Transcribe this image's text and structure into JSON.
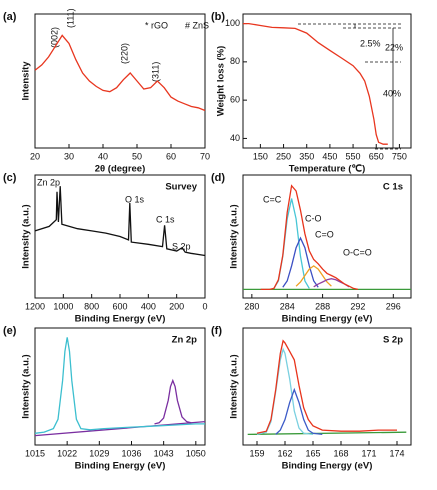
{
  "chart_data": [
    {
      "type": "line",
      "panel": "(a)",
      "x_label": "2θ (degree)",
      "y_label": "Intensity",
      "xlim": [
        20,
        70
      ],
      "xticks": [
        20,
        30,
        40,
        50,
        60,
        70
      ],
      "ylim": [
        0,
        100
      ],
      "annotations": [
        "* rGO",
        "# ZnS",
        "(002)",
        "(111)",
        "(220)",
        "(311)"
      ],
      "series": [
        {
          "color": "#e8361f",
          "x": [
            20,
            22,
            24,
            26,
            28,
            30,
            32,
            34,
            36,
            38,
            40,
            42,
            44,
            46,
            48,
            50,
            52,
            54,
            56,
            58,
            60,
            62,
            64,
            66,
            68,
            70
          ],
          "values": [
            58,
            62,
            68,
            76,
            84,
            78,
            66,
            56,
            50,
            46,
            43,
            42,
            45,
            51,
            56,
            50,
            44,
            45,
            50,
            45,
            38,
            35,
            33,
            31,
            30,
            28
          ]
        }
      ]
    },
    {
      "type": "line",
      "panel": "(b)",
      "x_label": "Temperature (℃)",
      "y_label": "Weight loss (%)",
      "xlim": [
        75,
        800
      ],
      "xticks": [
        150,
        250,
        350,
        450,
        550,
        650,
        750
      ],
      "ylim": [
        35,
        105
      ],
      "yticks": [
        40,
        60,
        80,
        100
      ],
      "annotations": [
        "2.5%",
        "22%",
        "40%"
      ],
      "series": [
        {
          "color": "#e8361f",
          "x": [
            75,
            100,
            150,
            200,
            250,
            300,
            350,
            400,
            450,
            500,
            550,
            580,
            600,
            620,
            640,
            650,
            660,
            680,
            700
          ],
          "values": [
            100,
            100,
            99,
            98,
            97.8,
            97.5,
            95,
            90,
            86,
            82,
            78,
            74,
            70,
            62,
            50,
            42,
            38,
            37,
            37
          ]
        }
      ]
    },
    {
      "type": "line",
      "panel": "(c)",
      "x_label": "Binding Energy (eV)",
      "y_label": "Intensity (a.u.)",
      "label": "Survey",
      "xlim": [
        1200,
        0
      ],
      "xticks": [
        1200,
        1000,
        800,
        600,
        400,
        200,
        0
      ],
      "ylim": [
        0,
        110
      ],
      "annotations": [
        "Zn 2p",
        "O 1s",
        "C 1s",
        "S 2p"
      ],
      "series": [
        {
          "color": "#111111",
          "x": [
            1200,
            1100,
            1050,
            1045,
            1035,
            1022,
            1010,
            900,
            800,
            700,
            600,
            540,
            531,
            520,
            400,
            300,
            285,
            270,
            200,
            162,
            140,
            100,
            0
          ],
          "values": [
            60,
            64,
            70,
            95,
            68,
            100,
            66,
            62,
            60,
            58,
            55,
            52,
            85,
            50,
            48,
            46,
            65,
            44,
            42,
            45,
            41,
            40,
            38
          ]
        }
      ]
    },
    {
      "type": "line",
      "panel": "(d)",
      "x_label": "Binding Energy (eV)",
      "y_label": "Intensity (a.u.)",
      "label": "C 1s",
      "xlim": [
        279,
        298
      ],
      "xticks": [
        280,
        284,
        288,
        292,
        296
      ],
      "ylim": [
        0,
        115
      ],
      "series": [
        {
          "color": "#3a9a3a",
          "x": [
            279,
            298
          ],
          "values": [
            8,
            8
          ]
        },
        {
          "name": "C=C",
          "color": "#48c6d6",
          "x": [
            282.5,
            283,
            283.5,
            284,
            284.5,
            285,
            285.5,
            286,
            286.5
          ],
          "values": [
            9,
            16,
            39,
            74,
            93,
            74,
            39,
            16,
            9
          ]
        },
        {
          "name": "C-O",
          "color": "#3b4fc4",
          "x": [
            283.5,
            284,
            284.5,
            285,
            285.5,
            286,
            286.5,
            287,
            287.5
          ],
          "values": [
            10,
            16,
            30,
            47,
            56,
            47,
            30,
            16,
            10
          ]
        },
        {
          "name": "C=O",
          "color": "#f0a020",
          "x": [
            285,
            285.5,
            286,
            286.5,
            287,
            287.5,
            288,
            288.5,
            289
          ],
          "values": [
            11,
            15,
            21,
            27,
            30,
            27,
            21,
            15,
            11
          ]
        },
        {
          "name": "O-C=O",
          "color": "#9040a0",
          "x": [
            287,
            287.5,
            288,
            288.5,
            289,
            289.5,
            290,
            290.5,
            291
          ],
          "values": [
            10.5,
            13,
            15,
            17,
            18,
            17,
            15,
            13,
            10.5
          ]
        },
        {
          "color": "#e8341c",
          "x": [
            281,
            281.5,
            282,
            282.5,
            283,
            283.5,
            284,
            284.5,
            285,
            285.5,
            286,
            286.5,
            287,
            287.5,
            288,
            288.5,
            289,
            289.5,
            290,
            290.5,
            291,
            291.5,
            292
          ],
          "values": [
            8,
            8,
            8,
            9,
            17,
            40,
            80,
            105,
            100,
            82,
            60,
            44,
            36,
            32,
            27,
            23,
            21,
            19,
            16,
            13,
            11,
            9,
            8
          ]
        }
      ]
    },
    {
      "type": "line",
      "panel": "(e)",
      "x_label": "Binding Energy (eV)",
      "y_label": "Intensity (a.u.)",
      "label": "Zn 2p",
      "xlim": [
        1015,
        1052
      ],
      "xticks": [
        1015,
        1022,
        1029,
        1036,
        1043,
        1050
      ],
      "ylim": [
        0,
        100
      ],
      "series": [
        {
          "color": "#7a2ea0",
          "x": [
            1015,
            1052
          ],
          "values": [
            8,
            20
          ]
        },
        {
          "color": "#3cbfcf",
          "x": [
            1015,
            1017,
            1019,
            1020,
            1021,
            1021.5,
            1022,
            1022.5,
            1023,
            1024,
            1025,
            1027,
            1030,
            1035,
            1040,
            1045,
            1050,
            1052
          ],
          "values": [
            10,
            11,
            14,
            22,
            55,
            80,
            92,
            80,
            55,
            22,
            14,
            13,
            14,
            15,
            16,
            17,
            18,
            18
          ]
        },
        {
          "color": "#7a2ea0",
          "x": [
            1041,
            1042,
            1043,
            1044,
            1044.5,
            1045,
            1045.5,
            1046,
            1047,
            1048,
            1049
          ],
          "values": [
            18,
            19,
            23,
            38,
            50,
            55,
            50,
            38,
            24,
            20,
            19
          ]
        }
      ]
    },
    {
      "type": "line",
      "panel": "(f)",
      "x_label": "Binding Energy (eV)",
      "y_label": "Intensity (a.u.)",
      "label": "S 2p",
      "xlim": [
        157.5,
        175.5
      ],
      "xticks": [
        159,
        162,
        165,
        168,
        171,
        174
      ],
      "ylim": [
        0,
        110
      ],
      "series": [
        {
          "color": "#3a9a3a",
          "x": [
            158,
            175
          ],
          "values": [
            10,
            12
          ]
        },
        {
          "color": "#7ad0e0",
          "x": [
            159,
            160,
            160.5,
            161,
            161.5,
            161.8,
            162,
            162.5,
            163,
            163.5,
            164,
            165
          ],
          "values": [
            10,
            12,
            22,
            50,
            80,
            90,
            86,
            62,
            32,
            16,
            11,
            10
          ]
        },
        {
          "color": "#3c5bc8",
          "x": [
            161,
            161.5,
            162,
            162.5,
            163,
            163.5,
            164,
            164.5,
            165,
            166
          ],
          "values": [
            10,
            14,
            24,
            40,
            52,
            40,
            24,
            14,
            11,
            10
          ]
        },
        {
          "color": "#e8341c",
          "x": [
            159,
            160,
            160.5,
            161,
            161.5,
            161.8,
            162,
            162.5,
            163,
            163.5,
            164,
            164.5,
            165,
            166,
            168,
            170,
            172,
            174
          ],
          "values": [
            11,
            13,
            24,
            52,
            86,
            98,
            96,
            88,
            80,
            56,
            35,
            24,
            18,
            14,
            13,
            13,
            14,
            14
          ]
        }
      ]
    }
  ]
}
